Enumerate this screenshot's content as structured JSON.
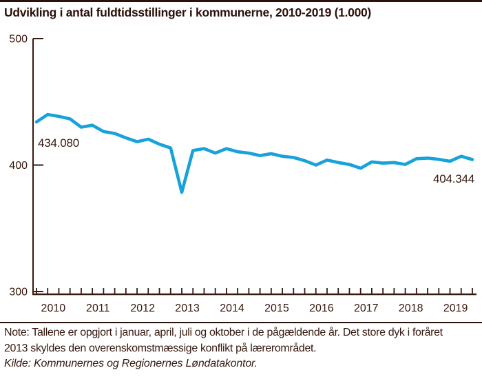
{
  "header": {
    "title": "Udvikling i antal fuldtidsstillinger i kommunerne, 2010-2019 (1.000)"
  },
  "chart_data": {
    "type": "line",
    "title": "Udvikling i antal fuldtidsstillinger i kommunerne, 2010-2019 (1.000)",
    "unit": "1.000 fuldtidsstillinger",
    "categories": [
      "2010",
      "2011",
      "2012",
      "2013",
      "2014",
      "2015",
      "2016",
      "2017",
      "2018",
      "2019"
    ],
    "points_per_year": [
      "januar",
      "april",
      "juli",
      "oktober"
    ],
    "values": [
      434.08,
      440.0,
      438.5,
      436.5,
      430.0,
      431.5,
      426.5,
      425.0,
      421.5,
      418.5,
      420.5,
      416.5,
      413.5,
      378.5,
      411.5,
      413.0,
      409.5,
      413.0,
      410.5,
      409.5,
      407.5,
      409.0,
      407.0,
      406.0,
      403.5,
      400.0,
      404.0,
      402.0,
      400.5,
      397.5,
      402.5,
      401.5,
      402.0,
      400.5,
      405.0,
      405.5,
      404.5,
      403.0,
      407.0,
      404.344
    ],
    "ylim": [
      300,
      500
    ],
    "y_ticks": [
      500,
      400,
      300
    ],
    "xlabel": "",
    "ylabel": "",
    "legend": "none",
    "grid": "off",
    "first_point_label": "434.080",
    "last_point_label": "404.344"
  },
  "annotations": {
    "start": "434.080",
    "end": "404.344"
  },
  "footer": {
    "note": "Note: Tallene er opgjort i januar, april, juli og oktober i de pågældende år. Det store dyk i foråret 2013 skyldes den overenskomstmæssige konflikt på lærerområdet.",
    "source": "Kilde: Kommunernes og Regionernes Løndatakontor."
  },
  "colors": {
    "line": "#17a2da",
    "ink": "#36190f"
  }
}
